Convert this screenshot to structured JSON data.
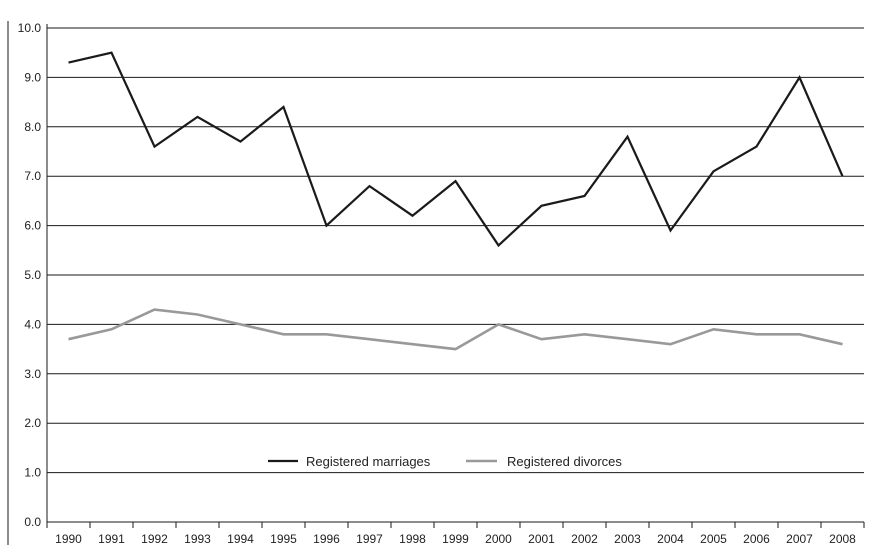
{
  "chart_data": {
    "type": "line",
    "title": "",
    "xlabel": "",
    "ylabel": "",
    "categories": [
      "1990",
      "1991",
      "1992",
      "1993",
      "1994",
      "1995",
      "1996",
      "1997",
      "1998",
      "1999",
      "2000",
      "2001",
      "2002",
      "2003",
      "2004",
      "2005",
      "2006",
      "2007",
      "2008"
    ],
    "y_tick_labels": [
      "0.0",
      "1.0",
      "2.0",
      "3.0",
      "4.0",
      "5.0",
      "6.0",
      "7.0",
      "8.0",
      "9.0",
      "10.0"
    ],
    "ylim": [
      0,
      10
    ],
    "grid": "horizontal",
    "legend_position": "bottom-center",
    "series": [
      {
        "name": "Registered marriages",
        "color": "#1a1a1a",
        "values": [
          9.3,
          9.5,
          7.6,
          8.2,
          7.7,
          8.4,
          6.0,
          6.8,
          6.2,
          6.9,
          5.6,
          6.4,
          6.6,
          7.8,
          5.9,
          7.1,
          7.6,
          9.0,
          7.0
        ]
      },
      {
        "name": "Registered divorces",
        "color": "#999999",
        "values": [
          3.7,
          3.9,
          4.3,
          4.2,
          4.0,
          3.8,
          3.8,
          3.7,
          3.6,
          3.5,
          4.0,
          3.7,
          3.8,
          3.7,
          3.6,
          3.9,
          3.8,
          3.8,
          3.6
        ]
      }
    ]
  }
}
